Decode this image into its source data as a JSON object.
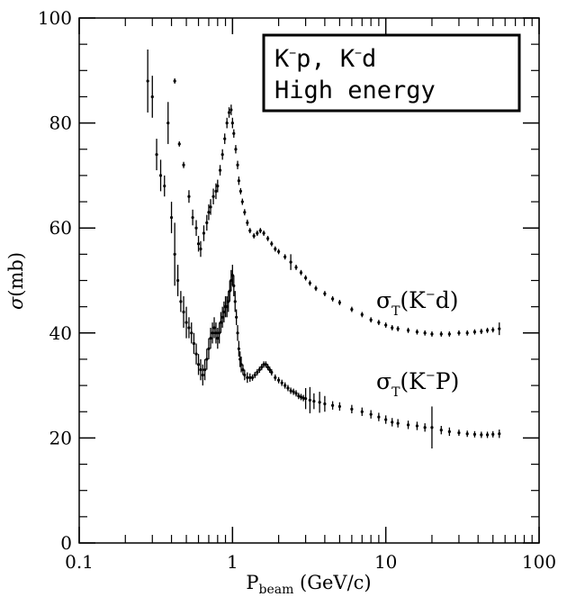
{
  "chart_data": {
    "type": "scatter",
    "title": "",
    "xlabel": {
      "main": "P",
      "sub": "beam",
      "unit": " (GeV/c)"
    },
    "ylabel": {
      "main": "σ",
      "unit": "(mb)"
    },
    "xscale": "log",
    "xlim": [
      0.1,
      100
    ],
    "ylim": [
      0,
      100
    ],
    "x_ticks": [
      0.1,
      1,
      10,
      100
    ],
    "x_tick_labels": [
      "0.1",
      "1",
      "10",
      "100"
    ],
    "y_ticks": [
      0,
      20,
      40,
      60,
      80,
      100
    ],
    "y_tick_labels": [
      "0",
      "20",
      "40",
      "60",
      "80",
      "100"
    ],
    "grid": false,
    "legend_box": {
      "line1": {
        "a": "K",
        "a_sup": "−",
        "b": "p,  K",
        "b_sup": "−",
        "c": "d"
      },
      "line2": "High energy",
      "placement": "top-right"
    },
    "series": [
      {
        "name": "σT(K⁻d)",
        "label": {
          "sigma": "σ",
          "sub": "T",
          "open": "(K",
          "sup": "−",
          "close": "d)"
        },
        "points": [
          [
            0.42,
            88,
            0.5
          ],
          [
            0.45,
            76,
            0.5
          ],
          [
            0.48,
            72,
            0.6
          ],
          [
            0.52,
            66,
            1.2
          ],
          [
            0.55,
            62,
            1.5
          ],
          [
            0.58,
            60,
            1.5
          ],
          [
            0.6,
            57,
            1.5
          ],
          [
            0.62,
            56,
            1.5
          ],
          [
            0.65,
            59,
            1.5
          ],
          [
            0.68,
            61,
            1.5
          ],
          [
            0.7,
            63,
            1.5
          ],
          [
            0.72,
            64,
            1.5
          ],
          [
            0.75,
            66,
            1.5
          ],
          [
            0.78,
            67,
            1.5
          ],
          [
            0.8,
            68,
            1.2
          ],
          [
            0.83,
            71,
            1.0
          ],
          [
            0.86,
            74,
            1.0
          ],
          [
            0.89,
            77,
            1.0
          ],
          [
            0.92,
            80,
            1.0
          ],
          [
            0.95,
            82,
            1.0
          ],
          [
            0.98,
            82.5,
            1.0
          ],
          [
            1.0,
            80,
            1.0
          ],
          [
            1.02,
            78,
            0.8
          ],
          [
            1.05,
            75,
            0.8
          ],
          [
            1.08,
            72,
            0.8
          ],
          [
            1.1,
            69,
            0.8
          ],
          [
            1.13,
            67,
            0.6
          ],
          [
            1.16,
            65,
            0.6
          ],
          [
            1.2,
            63,
            0.6
          ],
          [
            1.25,
            61,
            0.6
          ],
          [
            1.3,
            59.5,
            0.5
          ],
          [
            1.38,
            58.5,
            0.5
          ],
          [
            1.45,
            59,
            0.5
          ],
          [
            1.52,
            59.5,
            0.5
          ],
          [
            1.6,
            59,
            0.5
          ],
          [
            1.7,
            58,
            0.5
          ],
          [
            1.8,
            57,
            0.5
          ],
          [
            1.9,
            56,
            0.5
          ],
          [
            2.0,
            55.5,
            0.5
          ],
          [
            2.2,
            54.5,
            0.5
          ],
          [
            2.4,
            53.5,
            1.5
          ],
          [
            2.6,
            52.5,
            0.5
          ],
          [
            2.8,
            51.5,
            0.5
          ],
          [
            3.0,
            50.5,
            0.5
          ],
          [
            3.2,
            49.5,
            0.5
          ],
          [
            3.5,
            48.5,
            0.5
          ],
          [
            4.0,
            47.5,
            0.5
          ],
          [
            4.5,
            46.5,
            0.5
          ],
          [
            5.0,
            45.8,
            0.5
          ],
          [
            6.0,
            44.5,
            0.5
          ],
          [
            7.0,
            43.5,
            0.5
          ],
          [
            8.0,
            42.5,
            0.5
          ],
          [
            9.0,
            42,
            0.5
          ],
          [
            10.0,
            41.5,
            0.5
          ],
          [
            11.0,
            41,
            0.5
          ],
          [
            12.0,
            40.8,
            0.5
          ],
          [
            14.0,
            40.5,
            0.5
          ],
          [
            16.0,
            40.2,
            0.5
          ],
          [
            18.0,
            40,
            0.5
          ],
          [
            20.0,
            39.8,
            0.5
          ],
          [
            23.0,
            39.8,
            0.5
          ],
          [
            26.0,
            39.8,
            0.5
          ],
          [
            30.0,
            40,
            0.5
          ],
          [
            34.0,
            40,
            0.5
          ],
          [
            38.0,
            40.2,
            0.5
          ],
          [
            42.0,
            40.3,
            0.5
          ],
          [
            46.0,
            40.5,
            0.5
          ],
          [
            50.0,
            40.6,
            0.5
          ],
          [
            55.0,
            40.8,
            1.2
          ]
        ]
      },
      {
        "name": "σT(K⁻P)",
        "label": {
          "sigma": "σ",
          "sub": "T",
          "open": "(K",
          "sup": "−",
          "close": "P)"
        },
        "points": [
          [
            0.28,
            88,
            6
          ],
          [
            0.3,
            85,
            4
          ],
          [
            0.32,
            74,
            3
          ],
          [
            0.34,
            70,
            3
          ],
          [
            0.36,
            68,
            2
          ],
          [
            0.38,
            80,
            4
          ],
          [
            0.4,
            62,
            3
          ],
          [
            0.42,
            55,
            6
          ],
          [
            0.44,
            50,
            3
          ],
          [
            0.46,
            46,
            2
          ],
          [
            0.48,
            44,
            3
          ],
          [
            0.5,
            42,
            3
          ],
          [
            0.52,
            41,
            2
          ],
          [
            0.54,
            40,
            2
          ],
          [
            0.56,
            38,
            2
          ],
          [
            0.58,
            36,
            2
          ],
          [
            0.6,
            34,
            2
          ],
          [
            0.62,
            33,
            2
          ],
          [
            0.64,
            32,
            2
          ],
          [
            0.66,
            33,
            2
          ],
          [
            0.68,
            35,
            2
          ],
          [
            0.7,
            37,
            2
          ],
          [
            0.72,
            39,
            2
          ],
          [
            0.74,
            40,
            2
          ],
          [
            0.76,
            41,
            2
          ],
          [
            0.78,
            40,
            2
          ],
          [
            0.8,
            39,
            2
          ],
          [
            0.82,
            40,
            2
          ],
          [
            0.84,
            42,
            2
          ],
          [
            0.86,
            43,
            2
          ],
          [
            0.88,
            44,
            2
          ],
          [
            0.9,
            45,
            2
          ],
          [
            0.92,
            45,
            2
          ],
          [
            0.94,
            46,
            2
          ],
          [
            0.96,
            48,
            2
          ],
          [
            0.98,
            50,
            2
          ],
          [
            1.0,
            51,
            2
          ],
          [
            1.02,
            49,
            2
          ],
          [
            1.04,
            46,
            2
          ],
          [
            1.06,
            43,
            1.5
          ],
          [
            1.08,
            40,
            1.5
          ],
          [
            1.1,
            37,
            1.5
          ],
          [
            1.12,
            35,
            1.5
          ],
          [
            1.14,
            34,
            1.5
          ],
          [
            1.17,
            33,
            1.0
          ],
          [
            1.2,
            32,
            1.0
          ],
          [
            1.25,
            31.5,
            1.0
          ],
          [
            1.3,
            31.5,
            0.8
          ],
          [
            1.35,
            31.5,
            0.6
          ],
          [
            1.4,
            32,
            0.6
          ],
          [
            1.45,
            32.5,
            0.6
          ],
          [
            1.5,
            33,
            0.6
          ],
          [
            1.55,
            33.5,
            0.6
          ],
          [
            1.6,
            34,
            0.6
          ],
          [
            1.65,
            34,
            0.6
          ],
          [
            1.7,
            33.5,
            0.6
          ],
          [
            1.75,
            33,
            0.6
          ],
          [
            1.8,
            32.5,
            0.6
          ],
          [
            1.9,
            31.5,
            0.6
          ],
          [
            2.0,
            31,
            0.6
          ],
          [
            2.1,
            30.5,
            0.6
          ],
          [
            2.2,
            30,
            0.6
          ],
          [
            2.3,
            29.5,
            0.6
          ],
          [
            2.4,
            29,
            0.6
          ],
          [
            2.5,
            28.8,
            0.6
          ],
          [
            2.6,
            28.5,
            0.6
          ],
          [
            2.7,
            28,
            0.6
          ],
          [
            2.8,
            27.8,
            0.6
          ],
          [
            2.9,
            27.6,
            0.6
          ],
          [
            3.0,
            27.5,
            2.0
          ],
          [
            3.2,
            27.2,
            2.5
          ],
          [
            3.4,
            27,
            1.5
          ],
          [
            3.7,
            26.8,
            2.0
          ],
          [
            4.0,
            26.5,
            1.5
          ],
          [
            4.5,
            26.2,
            0.8
          ],
          [
            5.0,
            26,
            0.8
          ],
          [
            6.0,
            25.5,
            0.8
          ],
          [
            7.0,
            25,
            0.8
          ],
          [
            8.0,
            24.5,
            0.8
          ],
          [
            9.0,
            24,
            0.8
          ],
          [
            10.0,
            23.5,
            0.8
          ],
          [
            11.0,
            23,
            0.8
          ],
          [
            12.0,
            22.8,
            0.8
          ],
          [
            14.0,
            22.5,
            0.8
          ],
          [
            16.0,
            22.3,
            0.8
          ],
          [
            18.0,
            22,
            0.8
          ],
          [
            20.0,
            22,
            4.0
          ],
          [
            23.0,
            21.5,
            0.8
          ],
          [
            26.0,
            21.2,
            0.8
          ],
          [
            30.0,
            21,
            0.6
          ],
          [
            34.0,
            20.8,
            0.6
          ],
          [
            38.0,
            20.7,
            0.6
          ],
          [
            42.0,
            20.6,
            0.6
          ],
          [
            46.0,
            20.6,
            0.6
          ],
          [
            50.0,
            20.7,
            0.6
          ],
          [
            55.0,
            20.8,
            0.8
          ]
        ]
      }
    ]
  }
}
